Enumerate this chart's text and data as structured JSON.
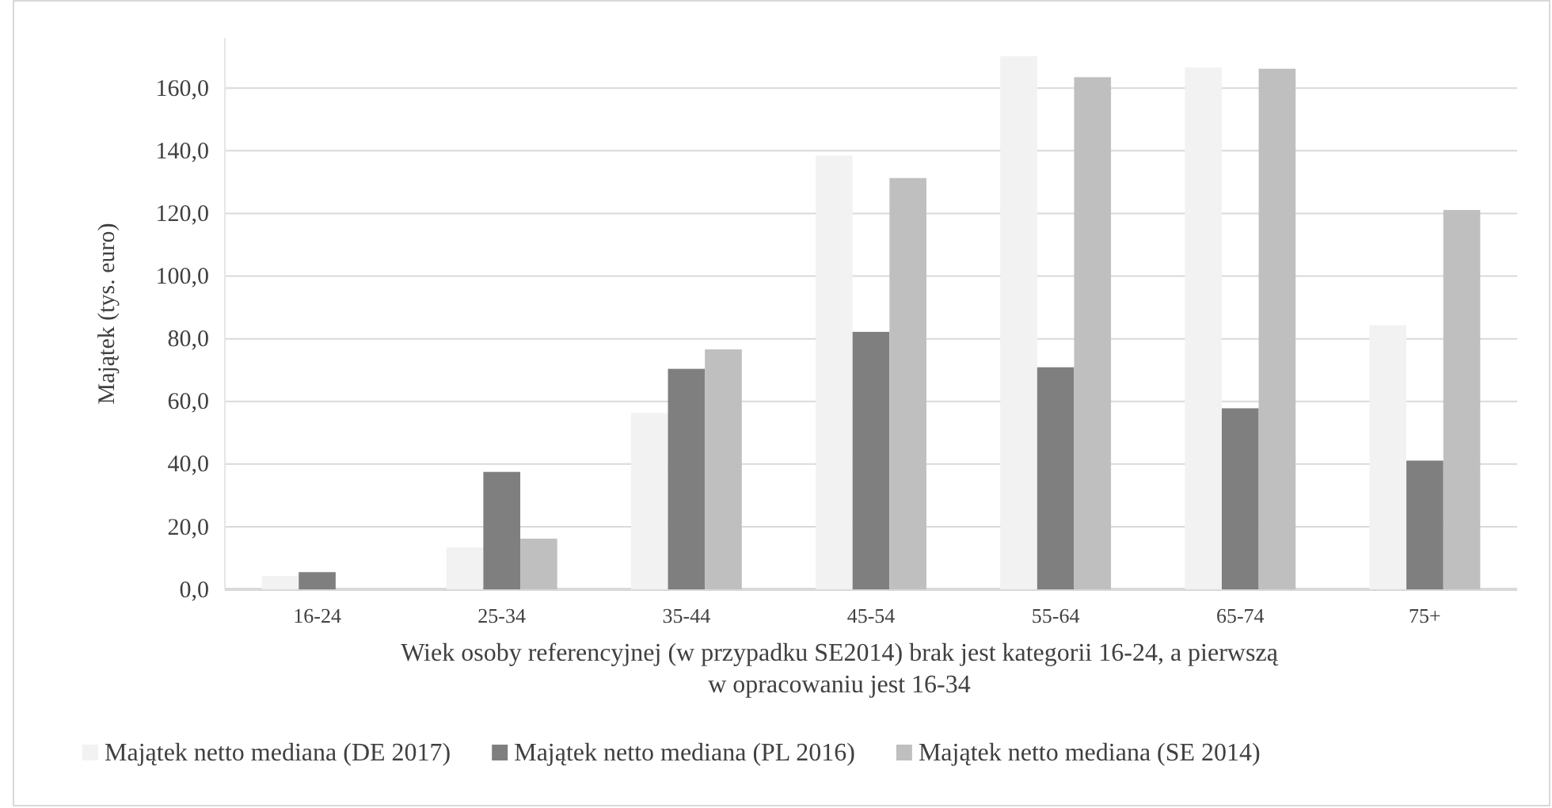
{
  "chart_data": {
    "type": "bar",
    "xlabel": "Wiek osoby referencyjnej (w przypadku SE2014) brak jest kategorii 16-24, a pierwszą\nw opracowaniu jest 16-34",
    "ylabel": "Majątek (tys. euro)",
    "categories": [
      "16-24",
      "25-34",
      "35-44",
      "45-54",
      "55-64",
      "65-74",
      "75+"
    ],
    "series": [
      {
        "name": "Majątek netto mediana (DE 2017)",
        "color": "#f2f2f2",
        "values": [
          4.3,
          13.4,
          56.3,
          138.5,
          170.2,
          166.6,
          84.3
        ]
      },
      {
        "name": "Majątek netto mediana (PL 2016)",
        "color": "#7f7f7f",
        "values": [
          5.5,
          37.5,
          70.4,
          82.2,
          70.9,
          57.8,
          41.1
        ]
      },
      {
        "name": "Majątek netto mediana (SE 2014)",
        "color": "#bfbfbf",
        "values": [
          null,
          16.2,
          76.6,
          131.3,
          163.5,
          166.2,
          121.1
        ]
      }
    ],
    "ylim": [
      0,
      176
    ],
    "yticks": [
      {
        "value": 0,
        "label": "0,0"
      },
      {
        "value": 20,
        "label": "20,0"
      },
      {
        "value": 40,
        "label": "40,0"
      },
      {
        "value": 60,
        "label": "60,0"
      },
      {
        "value": 80,
        "label": "80,0"
      },
      {
        "value": 100,
        "label": "100,0"
      },
      {
        "value": 120,
        "label": "120,0"
      },
      {
        "value": 140,
        "label": "140,0"
      },
      {
        "value": 160,
        "label": "160,0"
      }
    ],
    "grid": "y",
    "legend": "bottom"
  }
}
